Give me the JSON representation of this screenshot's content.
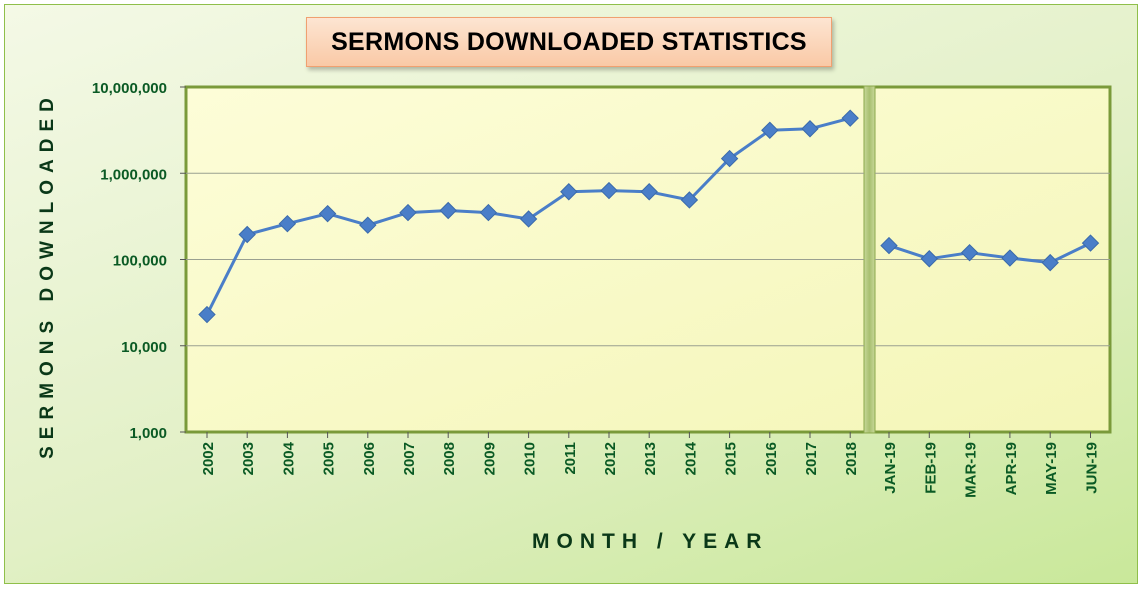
{
  "chart_data": {
    "type": "line",
    "title": "SERMONS DOWNLOADED STATISTICS",
    "xlabel": "MONTH / YEAR",
    "ylabel": "SERMONS DOWNLOADED",
    "yscale": "log",
    "ylim": [
      1000,
      10000000
    ],
    "yticks": [
      "1,000",
      "10,000",
      "100,000",
      "1,000,000",
      "10,000,000"
    ],
    "grid": true,
    "colors": {
      "line": "#4a7ec8",
      "marker": "#4a7ec8",
      "plot_bg": "#fdfdd0",
      "text": "#0a5a24"
    },
    "panels": [
      {
        "categories": [
          "2002",
          "2003",
          "2004",
          "2005",
          "2006",
          "2007",
          "2008",
          "2009",
          "2010",
          "2011",
          "2012",
          "2013",
          "2014",
          "2015",
          "2016",
          "2017",
          "2018"
        ],
        "values": [
          23000,
          195000,
          260000,
          340000,
          250000,
          350000,
          370000,
          350000,
          295000,
          610000,
          630000,
          610000,
          490000,
          1480000,
          3150000,
          3280000,
          4350000
        ]
      },
      {
        "categories": [
          "JAN-19",
          "FEB-19",
          "MAR-19",
          "APR-19",
          "MAY-19",
          "JUN-19"
        ],
        "values": [
          145000,
          102000,
          120000,
          104000,
          92000,
          155000
        ]
      }
    ]
  }
}
